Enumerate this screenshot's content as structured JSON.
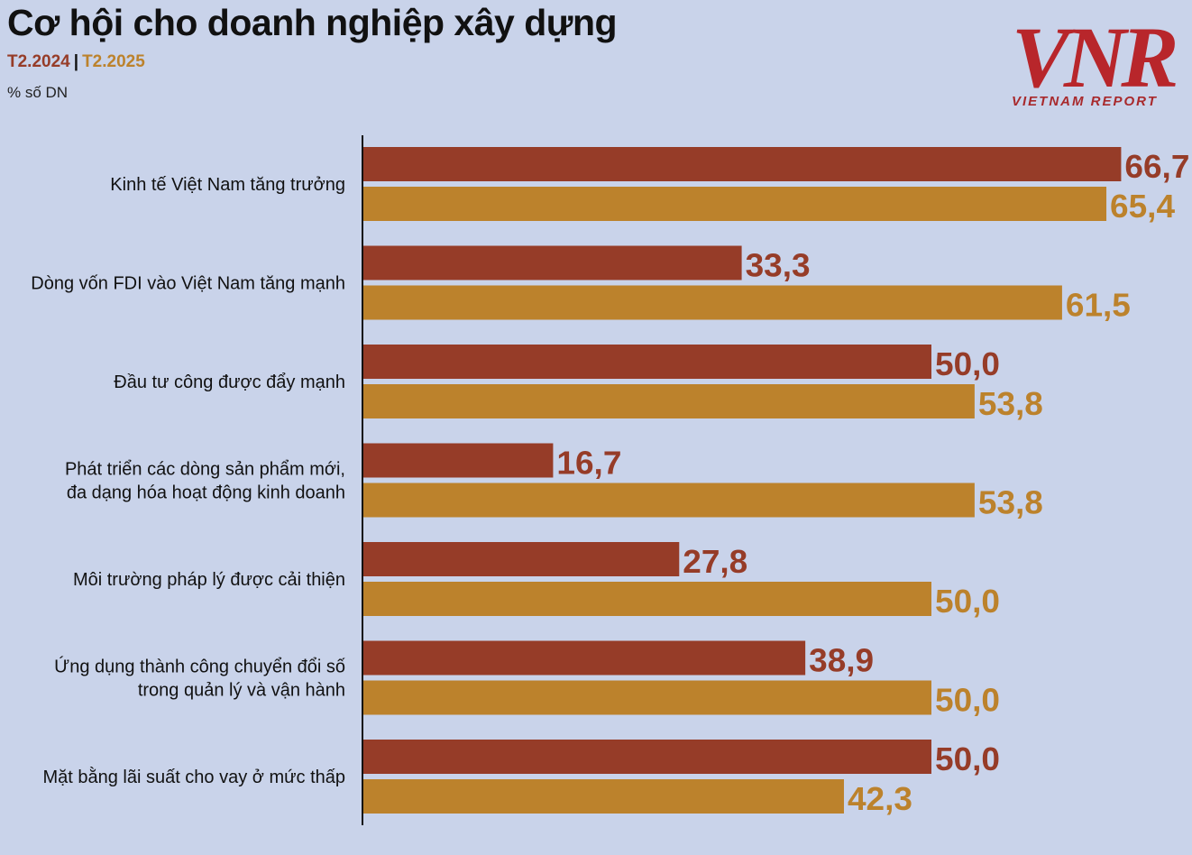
{
  "header": {
    "title": "Cơ hội cho doanh nghiệp xây dựng",
    "unit": "% số DN"
  },
  "brand": {
    "logo_text": "VNR",
    "tagline": "VIETNAM REPORT"
  },
  "chart_data": {
    "type": "bar",
    "orientation": "horizontal",
    "title": "Cơ hội cho doanh nghiệp xây dựng",
    "ylabel": "% số DN",
    "xlim": [
      0,
      70
    ],
    "categories": [
      [
        "Kinh tế Việt Nam tăng trưởng"
      ],
      [
        "Dòng vốn FDI vào Việt Nam tăng mạnh"
      ],
      [
        "Đầu tư công được đẩy mạnh"
      ],
      [
        "Phát triển các dòng sản phẩm mới,",
        "đa dạng hóa hoạt động kinh doanh"
      ],
      [
        "Môi trường pháp lý được cải thiện"
      ],
      [
        "Ứng dụng thành công chuyển đổi số",
        "trong quản lý và vận hành"
      ],
      [
        "Mặt bằng lãi suất cho vay ở mức thấp"
      ]
    ],
    "series": [
      {
        "name": "T2.2024",
        "color": "#963c28",
        "values": [
          66.7,
          33.3,
          50.0,
          16.7,
          27.8,
          38.9,
          50.0
        ],
        "labels": [
          "66,7",
          "33,3",
          "50,0",
          "16,7",
          "27,8",
          "38,9",
          "50,0"
        ]
      },
      {
        "name": "T2.2025",
        "color": "#bc822c",
        "values": [
          65.4,
          61.5,
          53.8,
          53.8,
          50.0,
          50.0,
          42.3
        ],
        "labels": [
          "65,4",
          "61,5",
          "53,8",
          "53,8",
          "50,0",
          "50,0",
          "42,3"
        ]
      }
    ],
    "legend_separator": "|"
  }
}
